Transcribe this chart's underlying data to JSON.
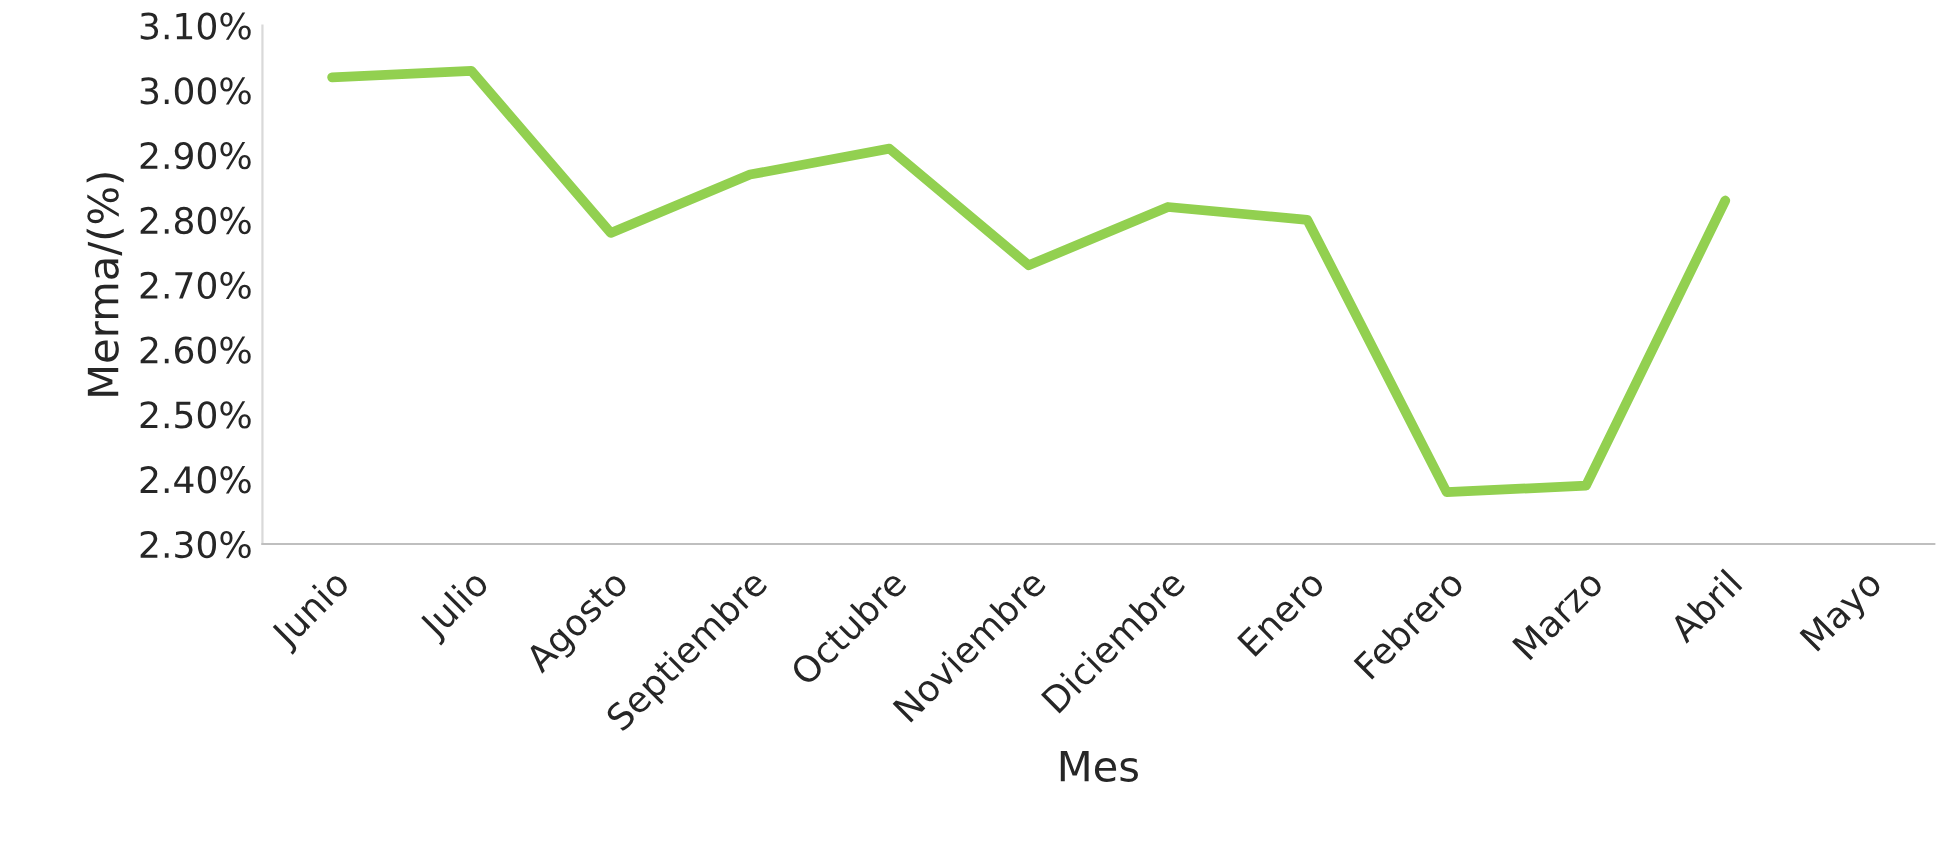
{
  "chart_data": {
    "type": "line",
    "xlabel": "Mes",
    "ylabel": "Merma/(%)",
    "categories": [
      "Junio",
      "Julio",
      "Agosto",
      "Septiembre",
      "Octubre",
      "Noviembre",
      "Diciembre",
      "Enero",
      "Febrero",
      "Marzo",
      "Abril",
      "Mayo"
    ],
    "series": [
      {
        "color": "#92d050",
        "values": [
          3.02,
          3.03,
          2.78,
          2.87,
          2.91,
          2.73,
          2.82,
          2.8,
          2.38,
          2.39,
          2.83,
          null
        ]
      }
    ],
    "ylim": [
      2.3,
      3.1
    ],
    "yticks": [
      {
        "value": 2.3,
        "label": "2.30%"
      },
      {
        "value": 2.4,
        "label": "2.40%"
      },
      {
        "value": 2.5,
        "label": "2.50%"
      },
      {
        "value": 2.6,
        "label": "2.60%"
      },
      {
        "value": 2.7,
        "label": "2.70%"
      },
      {
        "value": 2.8,
        "label": "2.80%"
      },
      {
        "value": 2.9,
        "label": "2.90%"
      },
      {
        "value": 3.0,
        "label": "3.00%"
      },
      {
        "value": 3.1,
        "label": "3.10%"
      }
    ],
    "grid": false,
    "legend": false,
    "marker": "none",
    "line_style": "solid"
  }
}
